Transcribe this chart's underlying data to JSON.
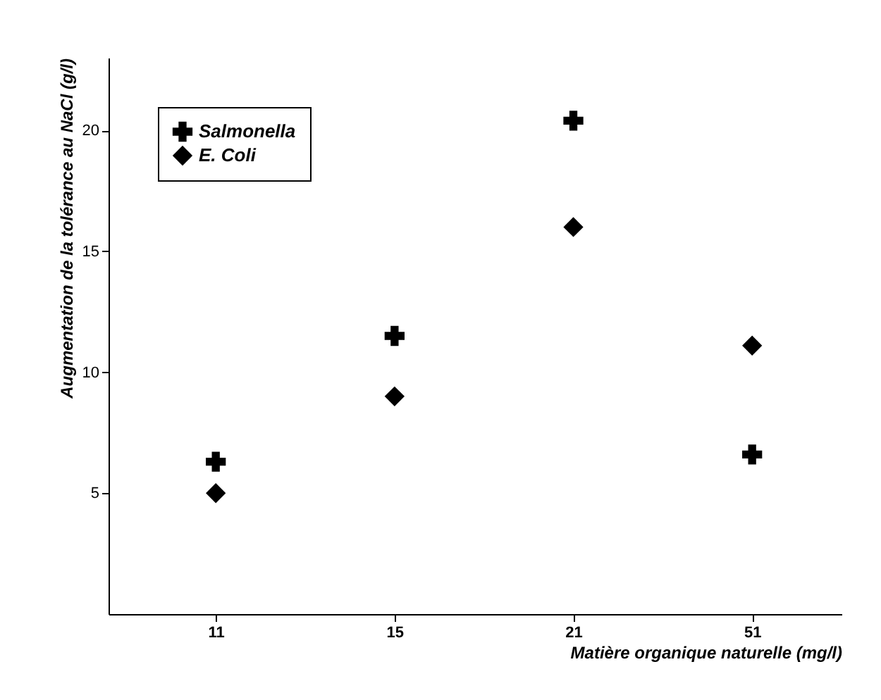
{
  "chart_data": {
    "type": "scatter",
    "xlabel": "Matière organique naturelle (mg/l)",
    "ylabel": "Augmentation de la tolérance au NaCl (g/l)",
    "categories": [
      "11",
      "15",
      "21",
      "51"
    ],
    "series": [
      {
        "name": "Salmonella",
        "color": "#000000",
        "marker": "cross",
        "values": [
          6.3,
          11.5,
          20.4,
          6.6
        ]
      },
      {
        "name": "E. Coli",
        "color": "#000000",
        "marker": "diamond",
        "values": [
          5.0,
          9.0,
          16.0,
          11.1
        ]
      }
    ],
    "ylim": [
      0,
      23
    ],
    "yticks": [
      5,
      10,
      15,
      20
    ],
    "grid": false,
    "legend": "top left"
  }
}
